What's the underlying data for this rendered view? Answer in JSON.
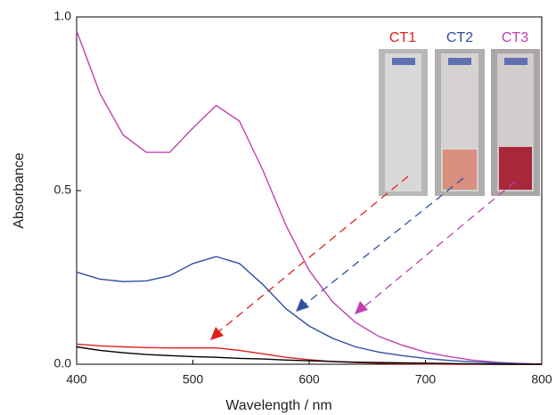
{
  "chart_data": {
    "type": "line",
    "xlabel": "Wavelength / nm",
    "ylabel": "Absorbance",
    "x": [
      400,
      420,
      440,
      460,
      480,
      500,
      520,
      540,
      560,
      580,
      600,
      620,
      640,
      660,
      680,
      700,
      720,
      740,
      760,
      780,
      800
    ],
    "series": [
      {
        "name": "CT3",
        "color": "#c040b0",
        "values": [
          0.96,
          0.78,
          0.66,
          0.61,
          0.61,
          0.68,
          0.745,
          0.7,
          0.56,
          0.4,
          0.27,
          0.18,
          0.12,
          0.08,
          0.055,
          0.035,
          0.022,
          0.012,
          0.006,
          0.002,
          0
        ]
      },
      {
        "name": "CT2",
        "color": "#2f4fa0",
        "values": [
          0.265,
          0.245,
          0.238,
          0.24,
          0.255,
          0.29,
          0.31,
          0.29,
          0.23,
          0.16,
          0.11,
          0.075,
          0.05,
          0.035,
          0.025,
          0.017,
          0.011,
          0.007,
          0.004,
          0.002,
          0
        ]
      },
      {
        "name": "CT1",
        "color": "#e02020",
        "values": [
          0.058,
          0.053,
          0.05,
          0.048,
          0.047,
          0.047,
          0.047,
          0.04,
          0.03,
          0.02,
          0.013,
          0.008,
          0.005,
          0.003,
          0.002,
          0.001,
          0,
          0,
          0,
          0,
          0
        ]
      },
      {
        "color": "#000000",
        "values": [
          0.05,
          0.04,
          0.033,
          0.028,
          0.025,
          0.022,
          0.02,
          0.017,
          0.015,
          0.012,
          0.01,
          0.008,
          0.006,
          0.005,
          0.004,
          0.003,
          0.002,
          0.001,
          0,
          0,
          0
        ]
      }
    ],
    "xlim": [
      400,
      800
    ],
    "xticks": [
      400,
      500,
      600,
      700,
      800
    ],
    "ylim": [
      0,
      1
    ],
    "yticks": [
      {
        "value": 0,
        "label": "0.0"
      },
      0.5,
      {
        "value": 1,
        "label": "1.0"
      }
    ]
  }
}
